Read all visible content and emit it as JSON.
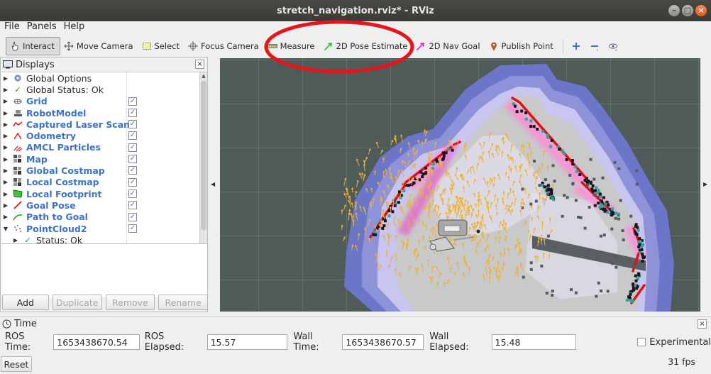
{
  "window": {
    "title": "stretch_navigation.rviz* - RViz"
  },
  "menu": {
    "items": [
      "File",
      "Panels",
      "Help"
    ]
  },
  "toolbar": {
    "tools": [
      {
        "label": "Interact",
        "icon": "hand-pointer-icon",
        "active": true
      },
      {
        "label": "Move Camera",
        "icon": "move-camera-icon",
        "active": false
      },
      {
        "label": "Select",
        "icon": "select-box-icon",
        "active": false
      },
      {
        "label": "Focus Camera",
        "icon": "crosshair-icon",
        "active": false
      },
      {
        "label": "Measure",
        "icon": "ruler-icon",
        "active": false
      },
      {
        "label": "2D Pose Estimate",
        "icon": "green-arrow-icon",
        "active": false
      },
      {
        "label": "2D Nav Goal",
        "icon": "magenta-arrow-icon",
        "active": false
      },
      {
        "label": "Publish Point",
        "icon": "map-pin-icon",
        "active": false
      }
    ],
    "extras": [
      "plus-icon",
      "minus-icon",
      "eye-icon"
    ]
  },
  "displays": {
    "title": "Displays",
    "items": [
      {
        "label": "Global Options",
        "icon": "gear-icon",
        "checked": null,
        "blue": false,
        "expanded": false
      },
      {
        "label": "Global Status: Ok",
        "icon": "check-icon",
        "checked": null,
        "blue": false,
        "expanded": false
      },
      {
        "label": "Grid",
        "icon": "grid-icon",
        "checked": true,
        "blue": true,
        "expanded": false
      },
      {
        "label": "RobotModel",
        "icon": "robot-icon",
        "checked": true,
        "blue": true,
        "expanded": false
      },
      {
        "label": "Captured Laser Scan",
        "icon": "laser-scan-icon",
        "checked": true,
        "blue": true,
        "expanded": false
      },
      {
        "label": "Odometry",
        "icon": "odometry-icon",
        "checked": true,
        "blue": true,
        "expanded": false
      },
      {
        "label": "AMCL Particles",
        "icon": "particles-icon",
        "checked": true,
        "blue": true,
        "expanded": false
      },
      {
        "label": "Map",
        "icon": "map-icon",
        "checked": true,
        "blue": true,
        "expanded": false
      },
      {
        "label": "Global Costmap",
        "icon": "map-icon",
        "checked": true,
        "blue": true,
        "expanded": false
      },
      {
        "label": "Local Costmap",
        "icon": "map-icon",
        "checked": true,
        "blue": true,
        "expanded": false
      },
      {
        "label": "Local Footprint",
        "icon": "polygon-icon",
        "checked": true,
        "blue": true,
        "expanded": false
      },
      {
        "label": "Goal Pose",
        "icon": "pose-arrow-icon",
        "checked": true,
        "blue": true,
        "expanded": false
      },
      {
        "label": "Path to Goal",
        "icon": "path-icon",
        "checked": true,
        "blue": true,
        "expanded": false
      },
      {
        "label": "PointCloud2",
        "icon": "pointcloud-icon",
        "checked": true,
        "blue": true,
        "expanded": true
      },
      {
        "label": "Status: Ok",
        "icon": "check-icon",
        "checked": null,
        "blue": false,
        "expanded": false,
        "child": true
      }
    ],
    "buttons": [
      {
        "label": "Add",
        "enabled": true
      },
      {
        "label": "Duplicate",
        "enabled": false
      },
      {
        "label": "Remove",
        "enabled": false
      },
      {
        "label": "Rename",
        "enabled": false
      }
    ]
  },
  "time": {
    "title": "Time",
    "ros_time_label": "ROS Time:",
    "ros_time": "1653438670.54",
    "ros_elapsed_label": "ROS Elapsed:",
    "ros_elapsed": "15.57",
    "wall_time_label": "Wall Time:",
    "wall_time": "1653438670.57",
    "wall_elapsed_label": "Wall Elapsed:",
    "wall_elapsed": "15.48",
    "experimental_label": "Experimental",
    "experimental_checked": false,
    "reset_label": "Reset",
    "fps": "31 fps"
  },
  "colors": {
    "laser": "#e01010",
    "particles": "#f0b030",
    "free_space": "#c9c9c9",
    "costmap_outer": "#6c76c8",
    "grid_background": "#4f5b59",
    "annotation": "#e8141c"
  }
}
